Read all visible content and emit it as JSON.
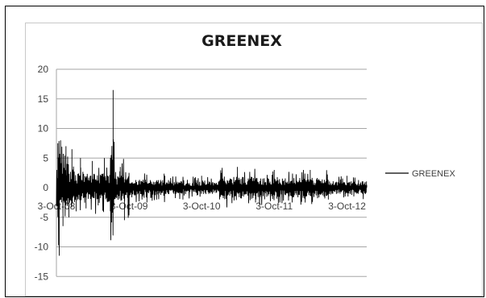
{
  "chart_data": {
    "type": "line",
    "title": "GREENEX",
    "xlabel": "",
    "ylabel": "",
    "ylim": [
      -15,
      20
    ],
    "yticks": [
      20,
      15,
      10,
      5,
      0,
      -5,
      -10,
      -15
    ],
    "xtick_labels": [
      "3-Oct-08",
      "3-Oct-09",
      "3-Oct-10",
      "3-Oct-11",
      "3-Oct-12"
    ],
    "xrange": [
      "2008-10-03",
      "2013-01-10"
    ],
    "grid": "horizontal",
    "legend": "right",
    "series": [
      {
        "name": "GREENEX",
        "color": "#000000",
        "approx_points": [
          [
            "2008-10-03",
            0
          ],
          [
            "2008-10-10",
            7.5
          ],
          [
            "2008-10-17",
            -11.5
          ],
          [
            "2008-10-24",
            8
          ],
          [
            "2008-11-05",
            -6.5
          ],
          [
            "2008-11-20",
            7
          ],
          [
            "2008-12-05",
            -5
          ],
          [
            "2008-12-20",
            6.5
          ],
          [
            "2009-01-10",
            -4
          ],
          [
            "2009-02-01",
            5
          ],
          [
            "2009-03-01",
            -3.5
          ],
          [
            "2009-04-01",
            4.5
          ],
          [
            "2009-05-01",
            -3
          ],
          [
            "2009-06-01",
            5
          ],
          [
            "2009-07-01",
            -4
          ],
          [
            "2009-07-15",
            16.5
          ],
          [
            "2009-07-20",
            -2
          ],
          [
            "2009-08-20",
            3.5
          ],
          [
            "2009-09-10",
            -5.5
          ],
          [
            "2009-10-03",
            2.5
          ],
          [
            "2010-01-01",
            -2.5
          ],
          [
            "2010-04-01",
            2
          ],
          [
            "2010-07-01",
            -2
          ],
          [
            "2010-10-03",
            2
          ],
          [
            "2011-01-01",
            -2
          ],
          [
            "2011-04-01",
            3.5
          ],
          [
            "2011-07-01",
            -2.5
          ],
          [
            "2011-10-03",
            3
          ],
          [
            "2012-01-01",
            -2.5
          ],
          [
            "2012-04-01",
            3
          ],
          [
            "2012-07-01",
            -2
          ],
          [
            "2012-10-03",
            2
          ],
          [
            "2013-01-10",
            0.5
          ]
        ]
      }
    ]
  }
}
